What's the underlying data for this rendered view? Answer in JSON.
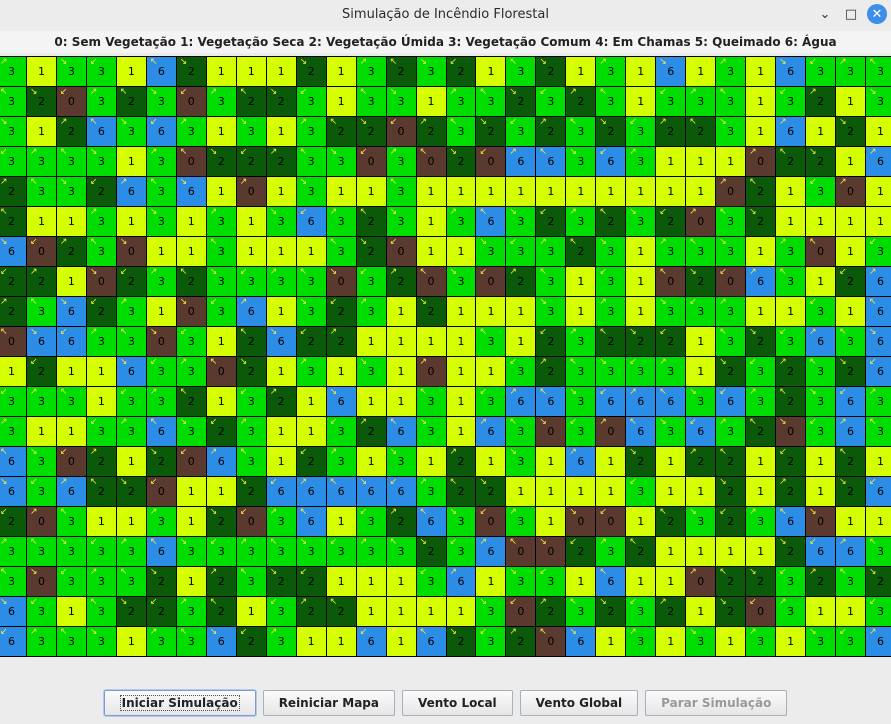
{
  "window": {
    "title": "Simulação de Incêndio Florestal"
  },
  "legend": "0: Sem Vegetação 1: Vegetação Seca 2: Vegetação Úmida 3: Vegetação Comum 4: Em Chamas 5: Queimado 6: Água",
  "colors": {
    "0": "#5a3a2e",
    "1": "#d4ff00",
    "2": "#0a5a0a",
    "3": "#00dd00",
    "6": "#2b8de6",
    "wind_arrow": "#ffeb3b"
  },
  "grid": {
    "rows": [
      "313316211121323213213161316333",
      "320323032231331332323133313213",
      "312636313132202323232322316121",
      "333313022233030206636311102216",
      "233263610131131111111111021301",
      "211313131363231363232320321111",
      "602301131113201133323133313013",
      "221023233330320302313102063126",
      "236231036132312111313133311316",
      "066330312622111131232221323636",
      "121163302131310113233331232326",
      "333133213216113136636663632363",
      "311336323113263163030636320363",
      "630212063123131213161212212121",
      "636220112666663221111311212126",
      "203113120361326303100123236011",
      "333336333333332360023211112663",
      "303332123221113613316110223232",
      "631322321322111130232321203113",
      "633313362311616232061313131336"
    ]
  },
  "buttons": [
    {
      "label": "Iniciar Simulação",
      "state": "focused"
    },
    {
      "label": "Reiniciar Mapa",
      "state": "normal"
    },
    {
      "label": "Vento Local",
      "state": "normal"
    },
    {
      "label": "Vento Global",
      "state": "normal"
    },
    {
      "label": "Parar Simulação",
      "state": "disabled"
    }
  ],
  "window_controls": {
    "minimize": "minimize-icon",
    "maximize": "maximize-icon",
    "close": "close-icon"
  }
}
